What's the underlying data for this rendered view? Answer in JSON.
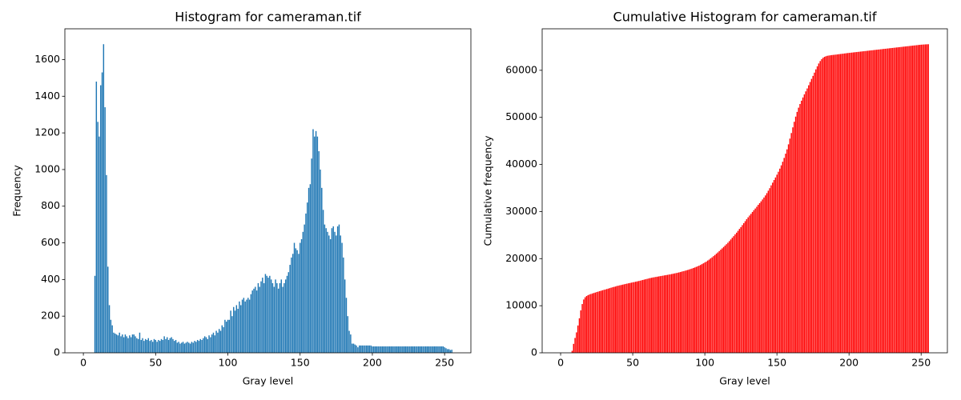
{
  "chart_data": [
    {
      "type": "bar",
      "title": "Histogram for cameraman.tif",
      "xlabel": "Gray level",
      "ylabel": "Frequency",
      "color": "#1f77b4",
      "x": [
        0,
        1,
        2,
        3,
        4,
        5,
        6,
        7,
        8,
        9,
        10,
        11,
        12,
        13,
        14,
        15,
        16,
        17,
        18,
        19,
        20,
        21,
        22,
        23,
        24,
        25,
        26,
        27,
        28,
        29,
        30,
        31,
        32,
        33,
        34,
        35,
        36,
        37,
        38,
        39,
        40,
        41,
        42,
        43,
        44,
        45,
        46,
        47,
        48,
        49,
        50,
        51,
        52,
        53,
        54,
        55,
        56,
        57,
        58,
        59,
        60,
        61,
        62,
        63,
        64,
        65,
        66,
        67,
        68,
        69,
        70,
        71,
        72,
        73,
        74,
        75,
        76,
        77,
        78,
        79,
        80,
        81,
        82,
        83,
        84,
        85,
        86,
        87,
        88,
        89,
        90,
        91,
        92,
        93,
        94,
        95,
        96,
        97,
        98,
        99,
        100,
        101,
        102,
        103,
        104,
        105,
        106,
        107,
        108,
        109,
        110,
        111,
        112,
        113,
        114,
        115,
        116,
        117,
        118,
        119,
        120,
        121,
        122,
        123,
        124,
        125,
        126,
        127,
        128,
        129,
        130,
        131,
        132,
        133,
        134,
        135,
        136,
        137,
        138,
        139,
        140,
        141,
        142,
        143,
        144,
        145,
        146,
        147,
        148,
        149,
        150,
        151,
        152,
        153,
        154,
        155,
        156,
        157,
        158,
        159,
        160,
        161,
        162,
        163,
        164,
        165,
        166,
        167,
        168,
        169,
        170,
        171,
        172,
        173,
        174,
        175,
        176,
        177,
        178,
        179,
        180,
        181,
        182,
        183,
        184,
        185,
        186,
        187,
        188,
        189,
        190,
        191,
        192,
        193,
        194,
        195,
        196,
        197,
        198,
        199,
        200,
        201,
        202,
        203,
        204,
        205,
        206,
        207,
        208,
        209,
        210,
        211,
        212,
        213,
        214,
        215,
        216,
        217,
        218,
        219,
        220,
        221,
        222,
        223,
        224,
        225,
        226,
        227,
        228,
        229,
        230,
        231,
        232,
        233,
        234,
        235,
        236,
        237,
        238,
        239,
        240,
        241,
        242,
        243,
        244,
        245,
        246,
        247,
        248,
        249,
        250,
        251,
        252,
        253,
        254,
        255
      ],
      "values": [
        0,
        0,
        0,
        0,
        0,
        0,
        0,
        0,
        420,
        1480,
        1260,
        1180,
        1460,
        1530,
        1684,
        1340,
        970,
        470,
        260,
        180,
        150,
        110,
        105,
        100,
        95,
        110,
        90,
        100,
        85,
        100,
        90,
        80,
        95,
        85,
        100,
        100,
        90,
        80,
        75,
        110,
        70,
        80,
        65,
        75,
        70,
        80,
        65,
        70,
        60,
        75,
        70,
        60,
        70,
        65,
        75,
        70,
        90,
        75,
        85,
        70,
        80,
        85,
        75,
        65,
        70,
        55,
        60,
        50,
        55,
        60,
        50,
        55,
        60,
        55,
        50,
        60,
        55,
        65,
        60,
        70,
        65,
        75,
        70,
        80,
        90,
        85,
        75,
        95,
        85,
        100,
        110,
        95,
        120,
        110,
        130,
        120,
        150,
        140,
        180,
        170,
        180,
        180,
        230,
        200,
        250,
        230,
        260,
        240,
        280,
        260,
        290,
        300,
        280,
        290,
        300,
        290,
        320,
        340,
        350,
        360,
        340,
        380,
        360,
        390,
        410,
        380,
        430,
        420,
        410,
        420,
        400,
        380,
        360,
        400,
        380,
        350,
        380,
        400,
        360,
        380,
        400,
        420,
        440,
        480,
        520,
        540,
        600,
        570,
        560,
        540,
        600,
        620,
        660,
        700,
        760,
        820,
        900,
        920,
        1060,
        1220,
        1180,
        1210,
        1180,
        1100,
        1000,
        900,
        780,
        700,
        680,
        660,
        640,
        620,
        680,
        690,
        660,
        640,
        690,
        700,
        640,
        600,
        520,
        400,
        300,
        200,
        120,
        100,
        50,
        50,
        45,
        40,
        30,
        40,
        40,
        40,
        40,
        40,
        40,
        40,
        40,
        40,
        35,
        35,
        35,
        35,
        35,
        35,
        35,
        35,
        35,
        35,
        35,
        35,
        35,
        35,
        35,
        35,
        35,
        35,
        35,
        35,
        35,
        35,
        35,
        35,
        35,
        35,
        35,
        35,
        35,
        35,
        35,
        35,
        35,
        35,
        35,
        35,
        35,
        35,
        35,
        35,
        35,
        35,
        35,
        35,
        35,
        35,
        35,
        35,
        35,
        35,
        30,
        25,
        20,
        20,
        15,
        17
      ],
      "xlim": [
        -12.8,
        268.2
      ],
      "ylim": [
        0,
        1768
      ],
      "xticks": [
        0,
        50,
        100,
        150,
        200,
        250
      ],
      "yticks": [
        0,
        200,
        400,
        600,
        800,
        1000,
        1200,
        1400,
        1600
      ]
    },
    {
      "type": "bar",
      "title": "Cumulative Histogram for cameraman.tif",
      "xlabel": "Gray level",
      "ylabel": "Cumulative frequency",
      "color": "#ff0000",
      "x": [
        0,
        1,
        2,
        3,
        4,
        5,
        6,
        7,
        8,
        9,
        10,
        11,
        12,
        13,
        14,
        15,
        16,
        17,
        18,
        19,
        20,
        21,
        22,
        23,
        24,
        25,
        26,
        27,
        28,
        29,
        30,
        31,
        32,
        33,
        34,
        35,
        36,
        37,
        38,
        39,
        40,
        41,
        42,
        43,
        44,
        45,
        46,
        47,
        48,
        49,
        50,
        51,
        52,
        53,
        54,
        55,
        56,
        57,
        58,
        59,
        60,
        61,
        62,
        63,
        64,
        65,
        66,
        67,
        68,
        69,
        70,
        71,
        72,
        73,
        74,
        75,
        76,
        77,
        78,
        79,
        80,
        81,
        82,
        83,
        84,
        85,
        86,
        87,
        88,
        89,
        90,
        91,
        92,
        93,
        94,
        95,
        96,
        97,
        98,
        99,
        100,
        101,
        102,
        103,
        104,
        105,
        106,
        107,
        108,
        109,
        110,
        111,
        112,
        113,
        114,
        115,
        116,
        117,
        118,
        119,
        120,
        121,
        122,
        123,
        124,
        125,
        126,
        127,
        128,
        129,
        130,
        131,
        132,
        133,
        134,
        135,
        136,
        137,
        138,
        139,
        140,
        141,
        142,
        143,
        144,
        145,
        146,
        147,
        148,
        149,
        150,
        151,
        152,
        153,
        154,
        155,
        156,
        157,
        158,
        159,
        160,
        161,
        162,
        163,
        164,
        165,
        166,
        167,
        168,
        169,
        170,
        171,
        172,
        173,
        174,
        175,
        176,
        177,
        178,
        179,
        180,
        181,
        182,
        183,
        184,
        185,
        186,
        187,
        188,
        189,
        190,
        191,
        192,
        193,
        194,
        195,
        196,
        197,
        198,
        199,
        200,
        201,
        202,
        203,
        204,
        205,
        206,
        207,
        208,
        209,
        210,
        211,
        212,
        213,
        214,
        215,
        216,
        217,
        218,
        219,
        220,
        221,
        222,
        223,
        224,
        225,
        226,
        227,
        228,
        229,
        230,
        231,
        232,
        233,
        234,
        235,
        236,
        237,
        238,
        239,
        240,
        241,
        242,
        243,
        244,
        245,
        246,
        247,
        248,
        249,
        250,
        251,
        252,
        253,
        254,
        255
      ],
      "values": [
        0,
        0,
        0,
        0,
        0,
        0,
        0,
        0,
        420,
        1900,
        3160,
        4340,
        5800,
        7330,
        9014,
        10354,
        11324,
        11794,
        12054,
        12234,
        12384,
        12494,
        12599,
        12699,
        12794,
        12904,
        12994,
        13094,
        13179,
        13279,
        13369,
        13449,
        13544,
        13629,
        13729,
        13829,
        13919,
        13999,
        14074,
        14184,
        14254,
        14334,
        14399,
        14474,
        14544,
        14624,
        14689,
        14759,
        14819,
        14894,
        14964,
        15024,
        15094,
        15159,
        15234,
        15304,
        15394,
        15469,
        15554,
        15624,
        15704,
        15789,
        15864,
        15929,
        15999,
        16054,
        16114,
        16164,
        16219,
        16279,
        16329,
        16384,
        16444,
        16499,
        16549,
        16609,
        16664,
        16729,
        16789,
        16859,
        16924,
        16999,
        17069,
        17149,
        17239,
        17324,
        17399,
        17494,
        17579,
        17679,
        17789,
        17884,
        18004,
        18114,
        18244,
        18364,
        18514,
        18654,
        18834,
        19004,
        19184,
        19364,
        19594,
        19794,
        20044,
        20274,
        20534,
        20774,
        21054,
        21314,
        21604,
        21904,
        22184,
        22474,
        22774,
        23064,
        23384,
        23724,
        24074,
        24434,
        24774,
        25154,
        25514,
        25904,
        26314,
        26694,
        27124,
        27544,
        27954,
        28374,
        28774,
        29154,
        29514,
        29914,
        30294,
        30644,
        31024,
        31424,
        31784,
        32164,
        32564,
        32984,
        33424,
        33904,
        34424,
        34964,
        35564,
        36134,
        36694,
        37234,
        37834,
        38454,
        39114,
        39814,
        40574,
        41394,
        42294,
        43214,
        44274,
        45494,
        46674,
        47884,
        49064,
        50164,
        51164,
        52064,
        52844,
        53544,
        54224,
        54884,
        55524,
        56144,
        56824,
        57514,
        58174,
        58814,
        59504,
        60204,
        60844,
        61444,
        61964,
        62364,
        62664,
        62864,
        62984,
        63084,
        63134,
        63184,
        63229,
        63269,
        63299,
        63339,
        63379,
        63419,
        63459,
        63499,
        63539,
        63579,
        63619,
        63659,
        63694,
        63729,
        63764,
        63799,
        63834,
        63869,
        63904,
        63939,
        63974,
        64009,
        64044,
        64079,
        64114,
        64149,
        64184,
        64219,
        64254,
        64289,
        64324,
        64359,
        64394,
        64429,
        64464,
        64499,
        64534,
        64569,
        64604,
        64639,
        64674,
        64709,
        64744,
        64779,
        64814,
        64849,
        64884,
        64919,
        64954,
        64989,
        65024,
        65059,
        65094,
        65129,
        65164,
        65199,
        65234,
        65269,
        65304,
        65339,
        65374,
        65409,
        65439,
        65464,
        65484,
        65504,
        65519,
        65536
      ],
      "xlim": [
        -12.8,
        268.2
      ],
      "ylim": [
        0,
        68813
      ],
      "xticks": [
        0,
        50,
        100,
        150,
        200,
        250
      ],
      "yticks": [
        0,
        10000,
        20000,
        30000,
        40000,
        50000,
        60000
      ]
    }
  ]
}
